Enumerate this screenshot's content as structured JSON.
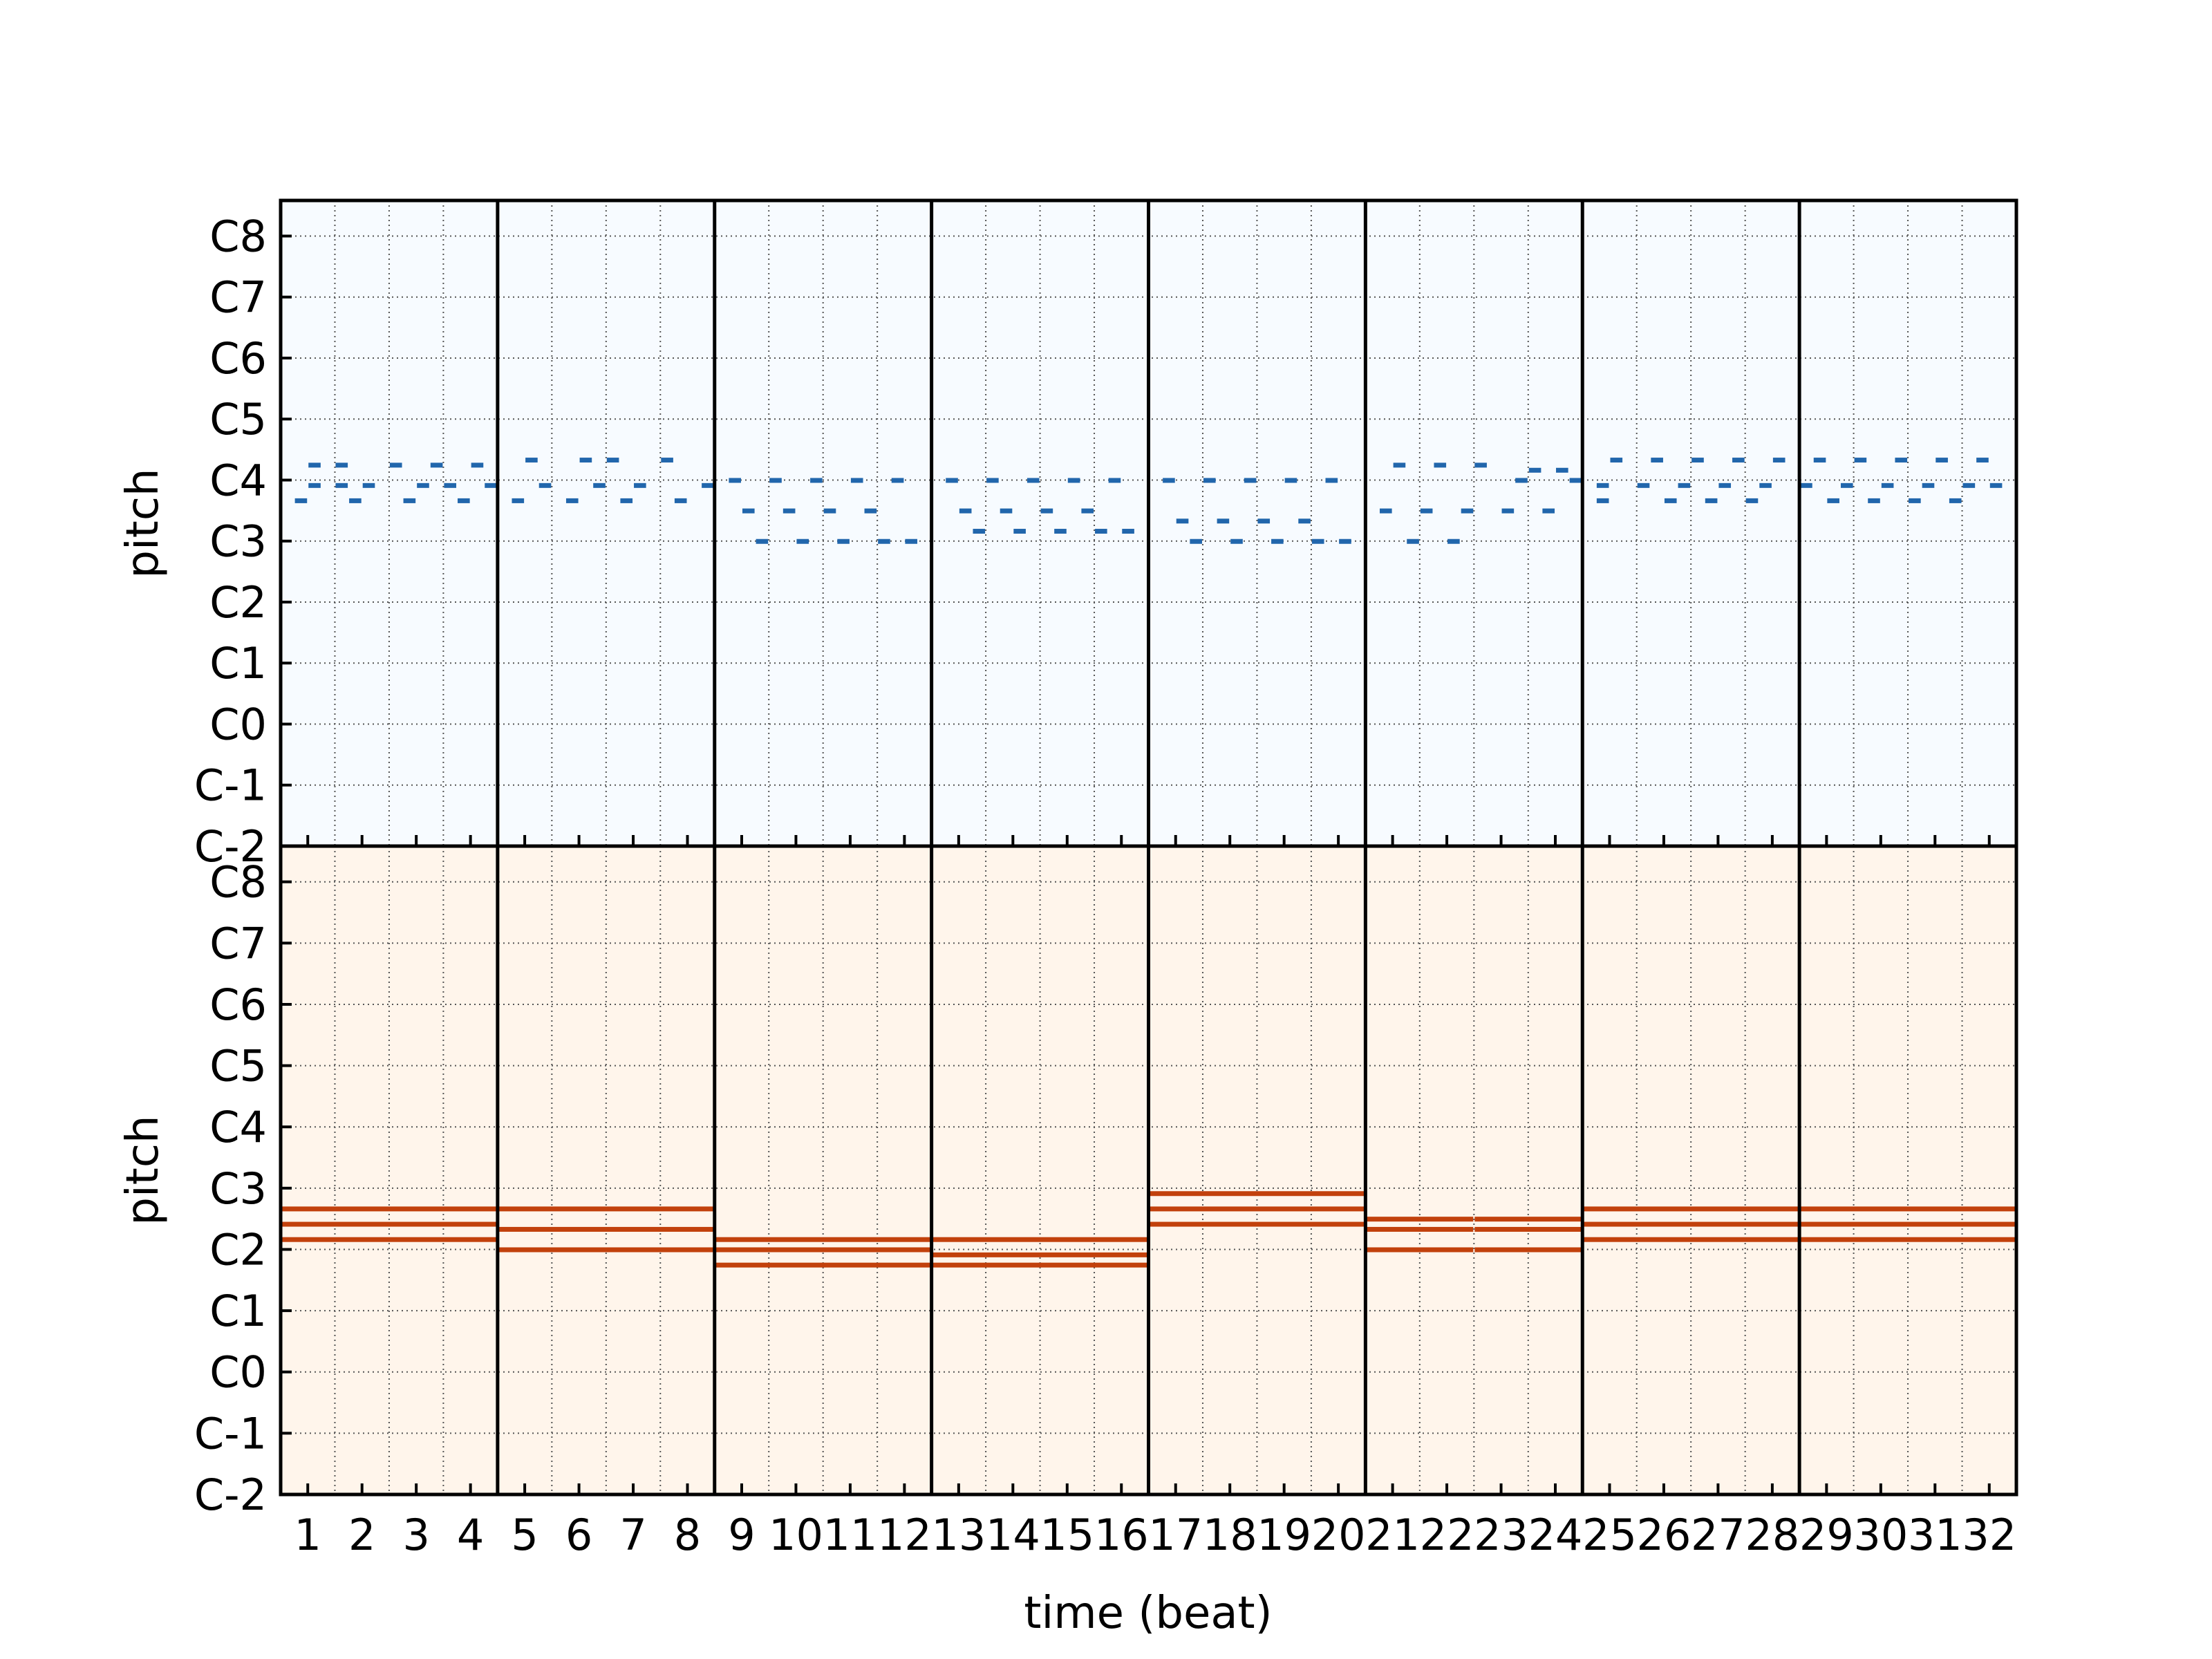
{
  "chart_data": {
    "type": "pianoroll",
    "beats": 32,
    "beat_resolution": 4,
    "bars": 8,
    "xlabel": "time (beat)",
    "x_tick_labels": [
      "1",
      "2",
      "3",
      "4",
      "5",
      "6",
      "7",
      "8",
      "9",
      "10",
      "11",
      "12",
      "13",
      "14",
      "15",
      "16",
      "17",
      "18",
      "19",
      "20",
      "21",
      "22",
      "23",
      "24",
      "25",
      "26",
      "27",
      "28",
      "29",
      "30",
      "31",
      "32"
    ],
    "pitch_range": [
      0,
      127
    ],
    "y_tick_labels": [
      {
        "label": "C-2",
        "pitch": 0
      },
      {
        "label": "C-1",
        "pitch": 12
      },
      {
        "label": "C0",
        "pitch": 24
      },
      {
        "label": "C1",
        "pitch": 36
      },
      {
        "label": "C2",
        "pitch": 48
      },
      {
        "label": "C3",
        "pitch": 60
      },
      {
        "label": "C4",
        "pitch": 72
      },
      {
        "label": "C5",
        "pitch": 84
      },
      {
        "label": "C6",
        "pitch": 96
      },
      {
        "label": "C7",
        "pitch": 108
      },
      {
        "label": "C8",
        "pitch": 120
      }
    ],
    "tracks": [
      {
        "ylabel": "pitch",
        "background": "#f7fbff",
        "note_color": "#2166ac",
        "notes": [
          {
            "pitch": 68,
            "start": 0.25,
            "dur": 0.25
          },
          {
            "pitch": 71,
            "start": 0.5,
            "dur": 0.25
          },
          {
            "pitch": 75,
            "start": 0.5,
            "dur": 0.25
          },
          {
            "pitch": 71,
            "start": 1.0,
            "dur": 0.25
          },
          {
            "pitch": 75,
            "start": 1.0,
            "dur": 0.25
          },
          {
            "pitch": 68,
            "start": 1.25,
            "dur": 0.25
          },
          {
            "pitch": 71,
            "start": 1.5,
            "dur": 0.25
          },
          {
            "pitch": 75,
            "start": 2.0,
            "dur": 0.25
          },
          {
            "pitch": 68,
            "start": 2.25,
            "dur": 0.25
          },
          {
            "pitch": 71,
            "start": 2.5,
            "dur": 0.25
          },
          {
            "pitch": 75,
            "start": 2.75,
            "dur": 0.25
          },
          {
            "pitch": 71,
            "start": 3.0,
            "dur": 0.25
          },
          {
            "pitch": 68,
            "start": 3.25,
            "dur": 0.25
          },
          {
            "pitch": 75,
            "start": 3.5,
            "dur": 0.25
          },
          {
            "pitch": 71,
            "start": 3.75,
            "dur": 0.25
          },
          {
            "pitch": 68,
            "start": 4.25,
            "dur": 0.25
          },
          {
            "pitch": 76,
            "start": 4.5,
            "dur": 0.25
          },
          {
            "pitch": 71,
            "start": 4.75,
            "dur": 0.25
          },
          {
            "pitch": 68,
            "start": 5.25,
            "dur": 0.25
          },
          {
            "pitch": 76,
            "start": 5.5,
            "dur": 0.25
          },
          {
            "pitch": 71,
            "start": 5.75,
            "dur": 0.25
          },
          {
            "pitch": 76,
            "start": 6.0,
            "dur": 0.25
          },
          {
            "pitch": 68,
            "start": 6.25,
            "dur": 0.25
          },
          {
            "pitch": 71,
            "start": 6.5,
            "dur": 0.25
          },
          {
            "pitch": 76,
            "start": 7.0,
            "dur": 0.25
          },
          {
            "pitch": 68,
            "start": 7.25,
            "dur": 0.25
          },
          {
            "pitch": 71,
            "start": 7.75,
            "dur": 0.25
          },
          {
            "pitch": 72,
            "start": 8.25,
            "dur": 0.25
          },
          {
            "pitch": 66,
            "start": 8.5,
            "dur": 0.25
          },
          {
            "pitch": 60,
            "start": 8.75,
            "dur": 0.25
          },
          {
            "pitch": 72,
            "start": 9.0,
            "dur": 0.25
          },
          {
            "pitch": 66,
            "start": 9.25,
            "dur": 0.25
          },
          {
            "pitch": 60,
            "start": 9.5,
            "dur": 0.25
          },
          {
            "pitch": 72,
            "start": 9.75,
            "dur": 0.25
          },
          {
            "pitch": 66,
            "start": 10.0,
            "dur": 0.25
          },
          {
            "pitch": 60,
            "start": 10.25,
            "dur": 0.25
          },
          {
            "pitch": 72,
            "start": 10.5,
            "dur": 0.25
          },
          {
            "pitch": 66,
            "start": 10.75,
            "dur": 0.25
          },
          {
            "pitch": 60,
            "start": 11.0,
            "dur": 0.25
          },
          {
            "pitch": 72,
            "start": 11.25,
            "dur": 0.25
          },
          {
            "pitch": 60,
            "start": 11.5,
            "dur": 0.25
          },
          {
            "pitch": 72,
            "start": 12.25,
            "dur": 0.25
          },
          {
            "pitch": 66,
            "start": 12.5,
            "dur": 0.25
          },
          {
            "pitch": 62,
            "start": 12.75,
            "dur": 0.25
          },
          {
            "pitch": 72,
            "start": 13.0,
            "dur": 0.25
          },
          {
            "pitch": 66,
            "start": 13.25,
            "dur": 0.25
          },
          {
            "pitch": 62,
            "start": 13.5,
            "dur": 0.25
          },
          {
            "pitch": 72,
            "start": 13.75,
            "dur": 0.25
          },
          {
            "pitch": 66,
            "start": 14.0,
            "dur": 0.25
          },
          {
            "pitch": 62,
            "start": 14.25,
            "dur": 0.25
          },
          {
            "pitch": 72,
            "start": 14.5,
            "dur": 0.25
          },
          {
            "pitch": 66,
            "start": 14.75,
            "dur": 0.25
          },
          {
            "pitch": 62,
            "start": 15.0,
            "dur": 0.25
          },
          {
            "pitch": 72,
            "start": 15.25,
            "dur": 0.25
          },
          {
            "pitch": 62,
            "start": 15.5,
            "dur": 0.25
          },
          {
            "pitch": 72,
            "start": 16.25,
            "dur": 0.25
          },
          {
            "pitch": 64,
            "start": 16.5,
            "dur": 0.25
          },
          {
            "pitch": 60,
            "start": 16.75,
            "dur": 0.25
          },
          {
            "pitch": 72,
            "start": 17.0,
            "dur": 0.25
          },
          {
            "pitch": 64,
            "start": 17.25,
            "dur": 0.25
          },
          {
            "pitch": 60,
            "start": 17.5,
            "dur": 0.25
          },
          {
            "pitch": 72,
            "start": 17.75,
            "dur": 0.25
          },
          {
            "pitch": 64,
            "start": 18.0,
            "dur": 0.25
          },
          {
            "pitch": 60,
            "start": 18.25,
            "dur": 0.25
          },
          {
            "pitch": 72,
            "start": 18.5,
            "dur": 0.25
          },
          {
            "pitch": 64,
            "start": 18.75,
            "dur": 0.25
          },
          {
            "pitch": 60,
            "start": 19.0,
            "dur": 0.25
          },
          {
            "pitch": 72,
            "start": 19.25,
            "dur": 0.25
          },
          {
            "pitch": 60,
            "start": 19.5,
            "dur": 0.25
          },
          {
            "pitch": 66,
            "start": 20.25,
            "dur": 0.25
          },
          {
            "pitch": 75,
            "start": 20.5,
            "dur": 0.25
          },
          {
            "pitch": 60,
            "start": 20.75,
            "dur": 0.25
          },
          {
            "pitch": 66,
            "start": 21.0,
            "dur": 0.25
          },
          {
            "pitch": 75,
            "start": 21.25,
            "dur": 0.25
          },
          {
            "pitch": 60,
            "start": 21.5,
            "dur": 0.25
          },
          {
            "pitch": 66,
            "start": 21.75,
            "dur": 0.25
          },
          {
            "pitch": 75,
            "start": 22.0,
            "dur": 0.25
          },
          {
            "pitch": 66,
            "start": 22.5,
            "dur": 0.25
          },
          {
            "pitch": 72,
            "start": 22.75,
            "dur": 0.25
          },
          {
            "pitch": 74,
            "start": 23.0,
            "dur": 0.25
          },
          {
            "pitch": 66,
            "start": 23.25,
            "dur": 0.25
          },
          {
            "pitch": 74,
            "start": 23.5,
            "dur": 0.25
          },
          {
            "pitch": 72,
            "start": 23.75,
            "dur": 0.25
          },
          {
            "pitch": 71,
            "start": 24.25,
            "dur": 0.25
          },
          {
            "pitch": 76,
            "start": 24.5,
            "dur": 0.25
          },
          {
            "pitch": 68,
            "start": 24.25,
            "dur": 0.25
          },
          {
            "pitch": 71,
            "start": 25.0,
            "dur": 0.25
          },
          {
            "pitch": 76,
            "start": 25.25,
            "dur": 0.25
          },
          {
            "pitch": 68,
            "start": 25.5,
            "dur": 0.25
          },
          {
            "pitch": 71,
            "start": 25.75,
            "dur": 0.25
          },
          {
            "pitch": 76,
            "start": 26.0,
            "dur": 0.25
          },
          {
            "pitch": 68,
            "start": 26.25,
            "dur": 0.25
          },
          {
            "pitch": 71,
            "start": 26.5,
            "dur": 0.25
          },
          {
            "pitch": 76,
            "start": 26.75,
            "dur": 0.25
          },
          {
            "pitch": 68,
            "start": 27.0,
            "dur": 0.25
          },
          {
            "pitch": 71,
            "start": 27.25,
            "dur": 0.25
          },
          {
            "pitch": 76,
            "start": 27.5,
            "dur": 0.25
          },
          {
            "pitch": 71,
            "start": 28.0,
            "dur": 0.25
          },
          {
            "pitch": 76,
            "start": 28.25,
            "dur": 0.25
          },
          {
            "pitch": 68,
            "start": 28.5,
            "dur": 0.25
          },
          {
            "pitch": 71,
            "start": 28.75,
            "dur": 0.25
          },
          {
            "pitch": 76,
            "start": 29.0,
            "dur": 0.25
          },
          {
            "pitch": 68,
            "start": 29.25,
            "dur": 0.25
          },
          {
            "pitch": 71,
            "start": 29.5,
            "dur": 0.25
          },
          {
            "pitch": 76,
            "start": 29.75,
            "dur": 0.25
          },
          {
            "pitch": 68,
            "start": 30.0,
            "dur": 0.25
          },
          {
            "pitch": 71,
            "start": 30.25,
            "dur": 0.25
          },
          {
            "pitch": 76,
            "start": 30.5,
            "dur": 0.25
          },
          {
            "pitch": 68,
            "start": 30.75,
            "dur": 0.25
          },
          {
            "pitch": 71,
            "start": 31.0,
            "dur": 0.25
          },
          {
            "pitch": 76,
            "start": 31.25,
            "dur": 0.25
          },
          {
            "pitch": 71,
            "start": 31.5,
            "dur": 0.25
          }
        ]
      },
      {
        "ylabel": "pitch",
        "background": "#fff5eb",
        "note_color": "#c2410c",
        "notes": [
          {
            "pitch": 56,
            "start": 0,
            "dur": 4
          },
          {
            "pitch": 53,
            "start": 0,
            "dur": 4
          },
          {
            "pitch": 50,
            "start": 0,
            "dur": 4
          },
          {
            "pitch": 56,
            "start": 4,
            "dur": 4
          },
          {
            "pitch": 52,
            "start": 4,
            "dur": 4
          },
          {
            "pitch": 48,
            "start": 4,
            "dur": 4
          },
          {
            "pitch": 50,
            "start": 8,
            "dur": 4
          },
          {
            "pitch": 48,
            "start": 8,
            "dur": 4
          },
          {
            "pitch": 45,
            "start": 8,
            "dur": 4
          },
          {
            "pitch": 50,
            "start": 12,
            "dur": 4
          },
          {
            "pitch": 47,
            "start": 12,
            "dur": 4
          },
          {
            "pitch": 45,
            "start": 12,
            "dur": 4
          },
          {
            "pitch": 59,
            "start": 16,
            "dur": 4
          },
          {
            "pitch": 56,
            "start": 16,
            "dur": 4
          },
          {
            "pitch": 53,
            "start": 16,
            "dur": 4
          },
          {
            "pitch": 54,
            "start": 20,
            "dur": 2
          },
          {
            "pitch": 52,
            "start": 20,
            "dur": 2
          },
          {
            "pitch": 48,
            "start": 20,
            "dur": 2
          },
          {
            "pitch": 54,
            "start": 22,
            "dur": 2
          },
          {
            "pitch": 52,
            "start": 22,
            "dur": 2
          },
          {
            "pitch": 48,
            "start": 22,
            "dur": 2
          },
          {
            "pitch": 56,
            "start": 24,
            "dur": 4
          },
          {
            "pitch": 53,
            "start": 24,
            "dur": 4
          },
          {
            "pitch": 50,
            "start": 24,
            "dur": 4
          },
          {
            "pitch": 56,
            "start": 28,
            "dur": 4
          },
          {
            "pitch": 53,
            "start": 28,
            "dur": 4
          },
          {
            "pitch": 50,
            "start": 28,
            "dur": 4
          }
        ]
      }
    ]
  }
}
